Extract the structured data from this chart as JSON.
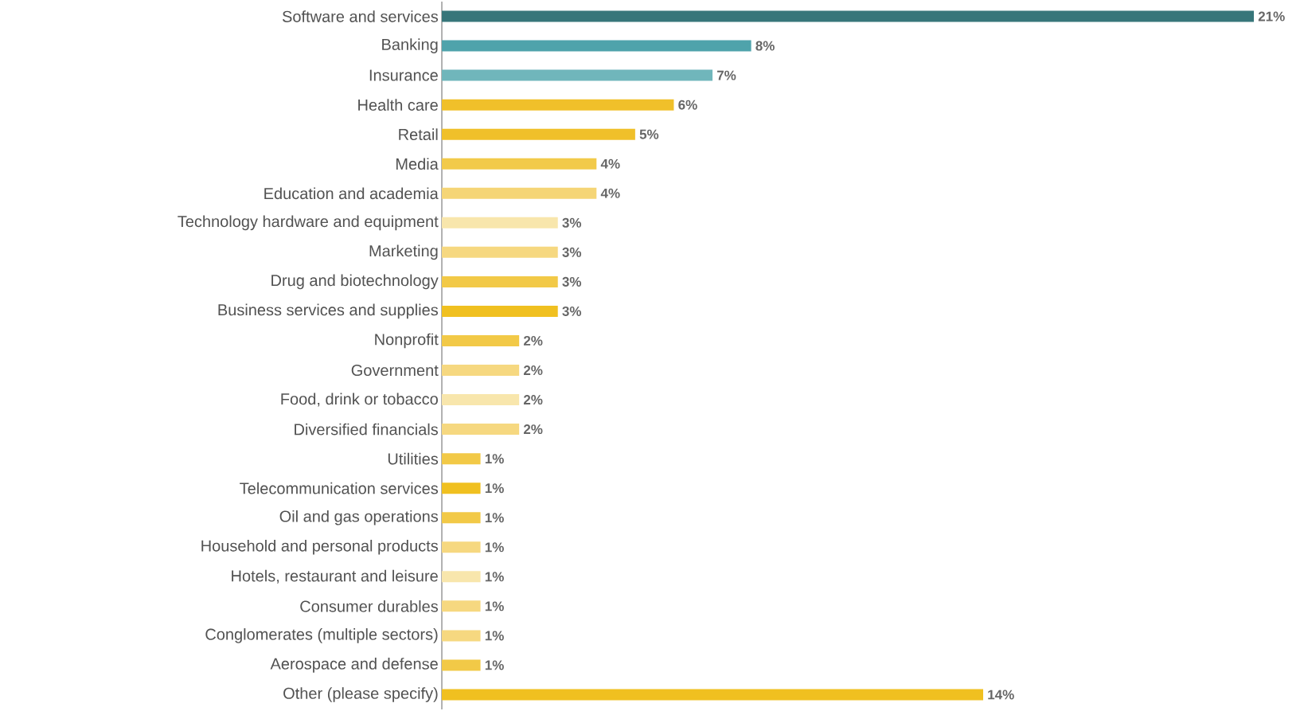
{
  "chart_data": {
    "type": "bar",
    "orientation": "horizontal",
    "relative": false,
    "categories": [
      "Software and services",
      "Banking",
      "Insurance",
      "Health care",
      "Retail",
      "Media",
      "Education and academia",
      "Technology hardware and equipment",
      "Marketing",
      "Drug and biotechnology",
      "Business services and supplies",
      "Nonprofit",
      "Government",
      "Food, drink or tobacco",
      "Diversified financials",
      "Utilities",
      "Telecommunication services",
      "Oil and gas operations",
      "Household and personal products",
      "Hotels, restaurant and leisure",
      "Consumer durables",
      "Conglomerates (multiple sectors)",
      "Aerospace and defense",
      "Other (please specify)"
    ],
    "values": [
      21,
      8,
      7,
      6,
      5,
      4,
      4,
      3,
      3,
      3,
      3,
      2,
      2,
      2,
      2,
      1,
      1,
      1,
      1,
      1,
      1,
      1,
      1,
      14
    ],
    "value_labels": [
      "21%",
      "8%",
      "7%",
      "6%",
      "5%",
      "4%",
      "4%",
      "3%",
      "3%",
      "3%",
      "3%",
      "2%",
      "2%",
      "2%",
      "2%",
      "1%",
      "1%",
      "1%",
      "1%",
      "1%",
      "1%",
      "1%",
      "1%",
      "14%"
    ],
    "colors": [
      "#37767a",
      "#4fa3ab",
      "#70b6bb",
      "#f0c02a",
      "#f0c02a",
      "#f2ca4a",
      "#f5d576",
      "#f8e6ac",
      "#f6d880",
      "#f2c947",
      "#f0c020",
      "#f2c947",
      "#f6d880",
      "#f8e6ac",
      "#f6d880",
      "#f2c947",
      "#f0c020",
      "#f2c947",
      "#f6d880",
      "#f8e6ac",
      "#f6d880",
      "#f6d880",
      "#f2c947",
      "#f0c020"
    ]
  }
}
